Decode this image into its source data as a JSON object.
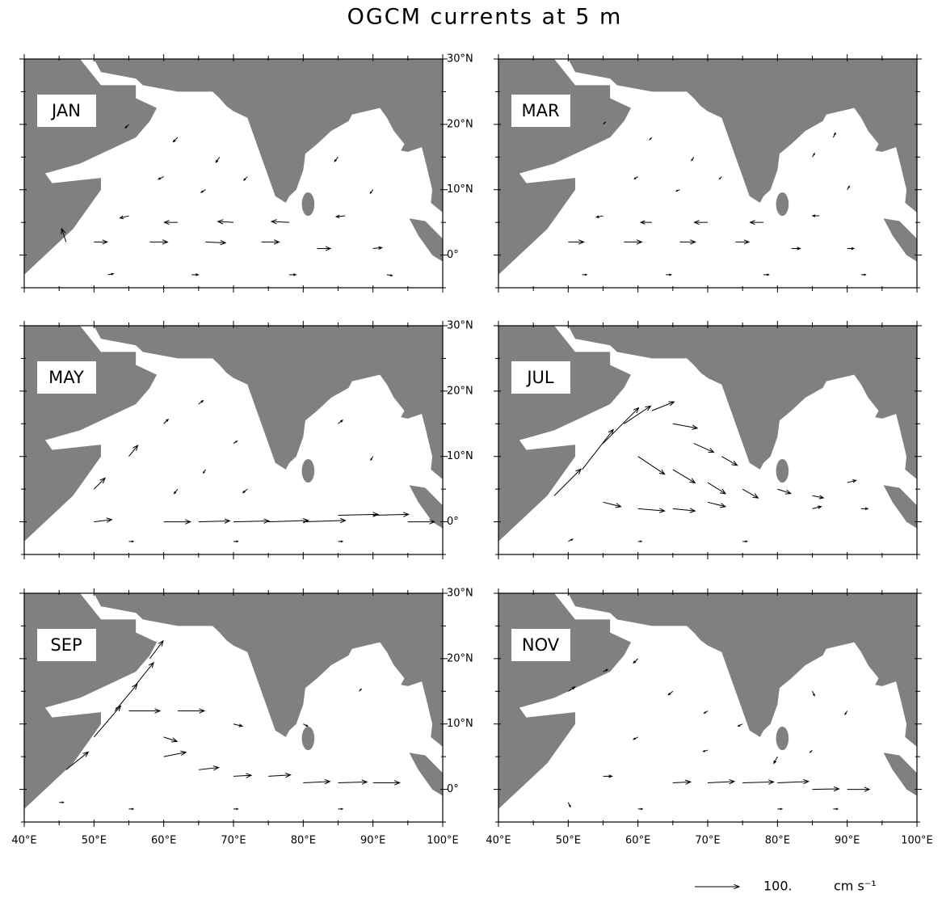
{
  "chart_data": {
    "type": "quiver",
    "title": "OGCM currents at 5 m",
    "xlim": [
      40,
      100
    ],
    "ylim": [
      -5,
      30
    ],
    "xticks": [
      {
        "value": 40,
        "label": "40°E"
      },
      {
        "value": 50,
        "label": "50°E"
      },
      {
        "value": 60,
        "label": "60°E"
      },
      {
        "value": 70,
        "label": "70°E"
      },
      {
        "value": 80,
        "label": "80°E"
      },
      {
        "value": 90,
        "label": "90°E"
      },
      {
        "value": 100,
        "label": "100°E"
      }
    ],
    "xminorticks": [
      45,
      55,
      65,
      75,
      85,
      95
    ],
    "yticks": [
      {
        "value": 0,
        "label": "0°"
      },
      {
        "value": 10,
        "label": "10°N"
      },
      {
        "value": 20,
        "label": "20°N"
      },
      {
        "value": 30,
        "label": "30°N"
      }
    ],
    "yminorticks": [
      -5,
      5,
      15,
      25
    ],
    "scale": {
      "value": 100,
      "label": "100.",
      "unit": "cm s⁻¹"
    },
    "panels": [
      {
        "label": "JAN",
        "lon": [
          55,
          62,
          68,
          60,
          66,
          72,
          85,
          90,
          55,
          62,
          70,
          78,
          86,
          50,
          58,
          66,
          74,
          82,
          90,
          52,
          64,
          78,
          92,
          46
        ],
        "lat": [
          20,
          18,
          15,
          12,
          10,
          12,
          15,
          10,
          6,
          5,
          5,
          5,
          6,
          2,
          2,
          2,
          2,
          1,
          1,
          -3,
          -3,
          -3,
          -3,
          2
        ],
        "u": [
          -8,
          -10,
          -8,
          -12,
          -10,
          -8,
          -8,
          -6,
          -20,
          -30,
          -35,
          -40,
          -20,
          30,
          40,
          45,
          40,
          30,
          20,
          12,
          15,
          15,
          12,
          -10
        ],
        "v": [
          -8,
          -10,
          -12,
          -6,
          -6,
          -8,
          -10,
          -8,
          -5,
          0,
          2,
          2,
          -2,
          0,
          0,
          -2,
          0,
          0,
          2,
          2,
          0,
          0,
          -2,
          30
        ]
      },
      {
        "label": "MAR",
        "lon": [
          55,
          62,
          68,
          60,
          66,
          72,
          85,
          90,
          55,
          62,
          70,
          78,
          86,
          50,
          58,
          66,
          74,
          82,
          90,
          52,
          64,
          78,
          92,
          88
        ],
        "lat": [
          20,
          18,
          15,
          12,
          10,
          12,
          15,
          10,
          6,
          5,
          5,
          5,
          6,
          2,
          2,
          2,
          2,
          1,
          1,
          -3,
          -3,
          -3,
          -3,
          18
        ],
        "u": [
          5,
          -5,
          -5,
          -8,
          -8,
          -5,
          5,
          5,
          -15,
          -25,
          -30,
          -30,
          -15,
          35,
          40,
          35,
          30,
          20,
          15,
          10,
          12,
          12,
          10,
          5
        ],
        "v": [
          5,
          -5,
          -8,
          -5,
          -3,
          -5,
          8,
          8,
          -3,
          0,
          0,
          0,
          0,
          0,
          0,
          0,
          0,
          0,
          0,
          0,
          0,
          0,
          0,
          10
        ]
      },
      {
        "label": "MAY",
        "lon": [
          50,
          55,
          60,
          65,
          70,
          66,
          62,
          72,
          85,
          90,
          50,
          60,
          65,
          70,
          75,
          80,
          85,
          90,
          95,
          55,
          70,
          85
        ],
        "lat": [
          5,
          10,
          15,
          18,
          12,
          8,
          5,
          5,
          15,
          10,
          0,
          0,
          0,
          0,
          0,
          0,
          1,
          1,
          0,
          -3,
          -3,
          -3
        ],
        "u": [
          25,
          20,
          10,
          10,
          8,
          -5,
          -8,
          -10,
          10,
          -5,
          40,
          60,
          70,
          80,
          90,
          95,
          90,
          80,
          60,
          10,
          10,
          10
        ],
        "v": [
          25,
          25,
          10,
          8,
          5,
          -8,
          -10,
          -8,
          8,
          -8,
          5,
          0,
          2,
          2,
          3,
          3,
          2,
          2,
          0,
          0,
          0,
          0
        ]
      },
      {
        "label": "JUL",
        "lon": [
          48,
          52,
          55,
          58,
          62,
          65,
          68,
          72,
          60,
          65,
          70,
          75,
          80,
          85,
          90,
          55,
          60,
          65,
          70,
          85,
          92,
          50,
          60,
          75
        ],
        "lat": [
          4,
          8,
          12,
          15,
          17,
          15,
          12,
          10,
          10,
          8,
          6,
          5,
          5,
          4,
          6,
          3,
          2,
          2,
          3,
          2,
          2,
          -3,
          -3,
          -3
        ],
        "u": [
          60,
          70,
          80,
          60,
          50,
          55,
          45,
          35,
          60,
          50,
          40,
          35,
          30,
          25,
          20,
          40,
          60,
          50,
          40,
          20,
          15,
          10,
          8,
          10
        ],
        "v": [
          60,
          90,
          80,
          40,
          20,
          -10,
          -20,
          -20,
          -40,
          -30,
          -25,
          -20,
          -10,
          -5,
          5,
          -10,
          -5,
          -5,
          -10,
          5,
          0,
          5,
          0,
          0
        ]
      },
      {
        "label": "SEP",
        "lon": [
          46,
          50,
          53,
          56,
          58,
          55,
          62,
          60,
          65,
          70,
          75,
          80,
          85,
          90,
          88,
          60,
          70,
          45,
          55,
          70,
          85,
          80
        ],
        "lat": [
          3,
          8,
          12,
          16,
          20,
          12,
          12,
          5,
          3,
          2,
          2,
          1,
          1,
          1,
          15,
          8,
          10,
          -2,
          -3,
          -3,
          -3,
          10
        ],
        "u": [
          50,
          60,
          50,
          40,
          30,
          70,
          60,
          50,
          45,
          40,
          50,
          60,
          65,
          60,
          5,
          30,
          20,
          10,
          10,
          10,
          10,
          10
        ],
        "v": [
          40,
          70,
          60,
          50,
          40,
          0,
          0,
          10,
          5,
          2,
          3,
          3,
          2,
          0,
          5,
          -10,
          -5,
          0,
          0,
          0,
          0,
          -5
        ]
      },
      {
        "label": "NOV",
        "lon": [
          50,
          55,
          60,
          65,
          70,
          75,
          85,
          90,
          60,
          70,
          80,
          85,
          55,
          65,
          70,
          75,
          80,
          85,
          90,
          50,
          60,
          80,
          88
        ],
        "lat": [
          15,
          18,
          20,
          15,
          12,
          10,
          15,
          12,
          8,
          6,
          5,
          6,
          2,
          1,
          1,
          1,
          1,
          0,
          0,
          -2,
          -3,
          -3,
          -3
        ],
        "u": [
          15,
          10,
          -10,
          -10,
          -8,
          -10,
          5,
          -5,
          -10,
          -10,
          -8,
          -5,
          20,
          40,
          60,
          70,
          70,
          60,
          50,
          5,
          10,
          10,
          10
        ],
        "v": [
          10,
          5,
          -10,
          -8,
          -5,
          -5,
          -10,
          -8,
          -5,
          -3,
          -15,
          -5,
          0,
          2,
          3,
          2,
          3,
          1,
          0,
          -10,
          0,
          0,
          0
        ]
      }
    ]
  }
}
